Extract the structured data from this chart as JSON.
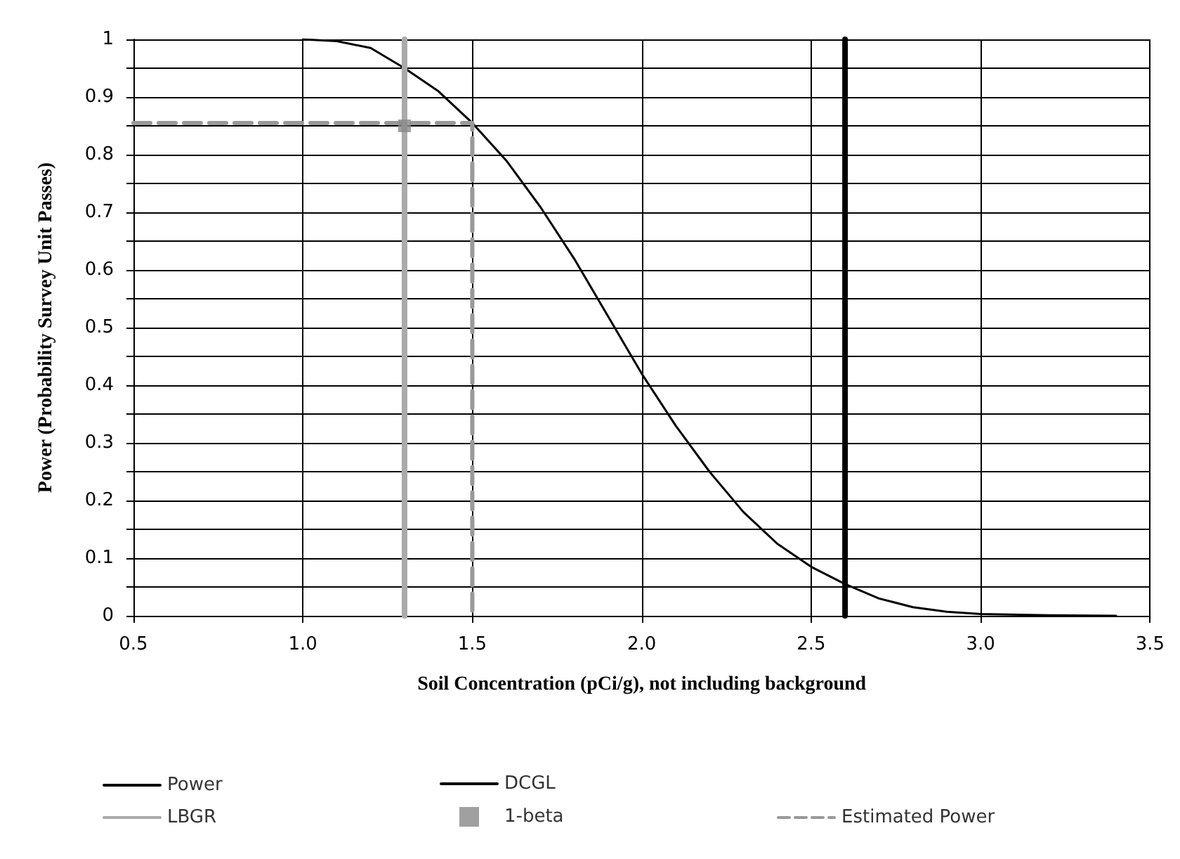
{
  "chart_data": {
    "type": "line",
    "xlabel": "Soil Concentration (pCi/g), not including background",
    "ylabel": "Power (Probability Survey Unit Passes)",
    "xlim": [
      0.5,
      3.5
    ],
    "ylim": [
      0,
      1
    ],
    "xticks": [
      0.5,
      {
        "value": 1,
        "label": "1.0"
      },
      1.5,
      {
        "value": 2,
        "label": "2.0"
      },
      2.5,
      {
        "value": 3,
        "label": "3.0"
      },
      3.5
    ],
    "yticks": [
      0,
      {
        "value": 0.05,
        "label": null
      },
      0.1,
      {
        "value": 0.15,
        "label": null
      },
      0.2,
      {
        "value": 0.25,
        "label": null
      },
      0.3,
      {
        "value": 0.35,
        "label": null
      },
      0.4,
      {
        "value": 0.45,
        "label": null
      },
      0.5,
      {
        "value": 0.55,
        "label": null
      },
      0.6,
      {
        "value": 0.65,
        "label": null
      },
      0.7,
      {
        "value": 0.75,
        "label": null
      },
      0.8,
      {
        "value": 0.85,
        "label": null
      },
      0.9,
      {
        "value": 0.95,
        "label": null
      },
      1
    ],
    "grid": true,
    "legend": "bottom",
    "series": [
      {
        "name": "Power",
        "color": "#000000",
        "line_style": "solid",
        "marker": "none",
        "x": [
          1.0,
          1.1,
          1.2,
          1.3,
          1.4,
          1.5,
          1.6,
          1.7,
          1.8,
          1.9,
          2.0,
          2.1,
          2.2,
          2.3,
          2.4,
          2.5,
          2.6,
          2.7,
          2.8,
          2.9,
          3.0,
          3.2,
          3.4
        ],
        "values": [
          1.0,
          0.997,
          0.985,
          0.95,
          0.91,
          0.855,
          0.79,
          0.71,
          0.62,
          0.52,
          0.42,
          0.33,
          0.25,
          0.18,
          0.125,
          0.085,
          0.055,
          0.03,
          0.015,
          0.007,
          0.003,
          0.001,
          0
        ]
      },
      {
        "name": "DCGL",
        "color": "#000000",
        "line_style": "solid",
        "marker": "none",
        "x": [
          2.6,
          2.6
        ],
        "values": [
          0,
          1
        ]
      },
      {
        "name": "Estimated Power",
        "color": "#999999",
        "line_style": "dashed",
        "marker": "none",
        "x": [
          0.5,
          1.5,
          1.5
        ],
        "values": [
          0.855,
          0.855,
          0
        ]
      },
      {
        "name": "LBGR",
        "color": "#aaaaaa",
        "line_style": "solid",
        "marker": "none",
        "x": [
          1.3,
          1.3
        ],
        "values": [
          0,
          1
        ]
      },
      {
        "name": "1-beta",
        "type": "scatter",
        "color": "#888888",
        "marker": "square",
        "x": [
          1.3
        ],
        "values": [
          0.85
        ]
      }
    ]
  }
}
